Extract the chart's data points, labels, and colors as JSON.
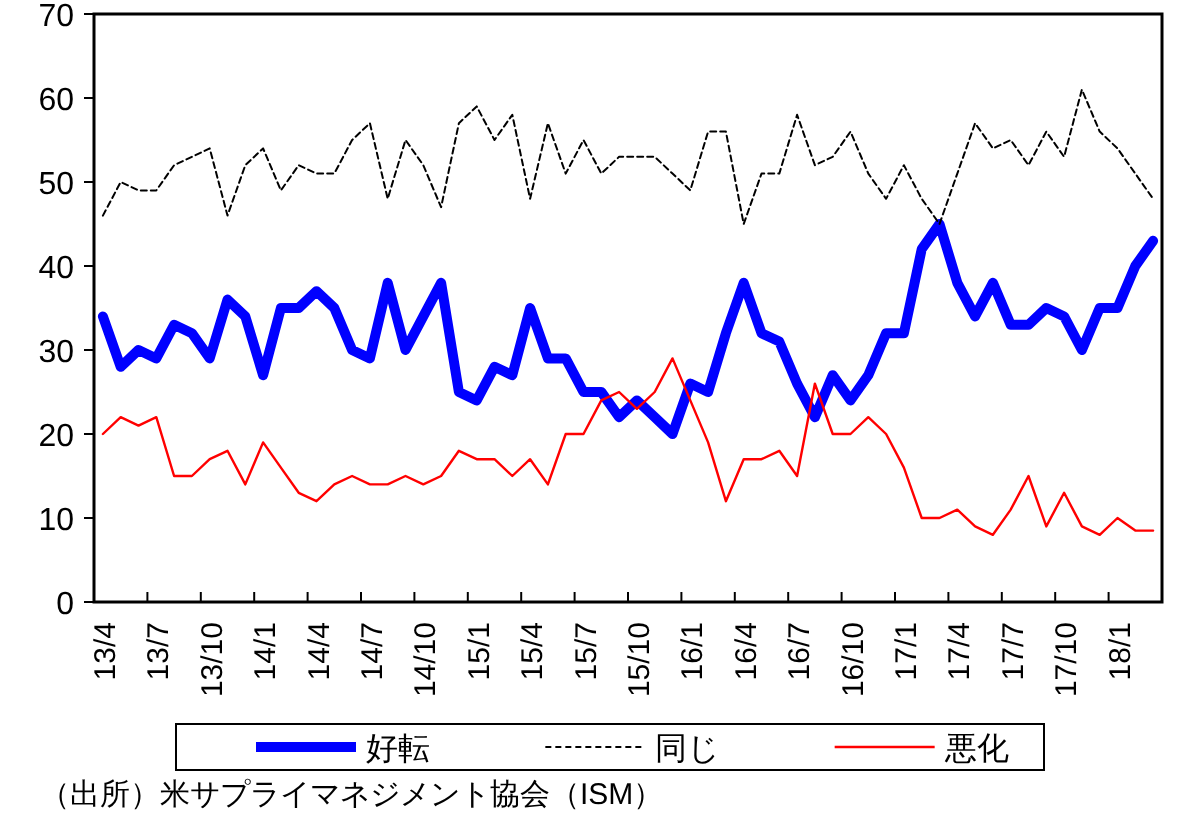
{
  "chart_data": {
    "type": "line",
    "categories": [
      "13/4",
      null,
      null,
      "13/7",
      null,
      null,
      "13/10",
      null,
      null,
      "14/1",
      null,
      null,
      "14/4",
      null,
      null,
      "14/7",
      null,
      null,
      "14/10",
      null,
      null,
      "15/1",
      null,
      null,
      "15/4",
      null,
      null,
      "15/7",
      null,
      null,
      "15/10",
      null,
      null,
      "16/1",
      null,
      null,
      "16/4",
      null,
      null,
      "16/7",
      null,
      null,
      "16/10",
      null,
      null,
      "17/1",
      null,
      null,
      "17/4",
      null,
      null,
      "17/7",
      null,
      null,
      "17/10",
      null,
      null,
      "18/1",
      null,
      null
    ],
    "series": [
      {
        "name": "好転",
        "color": "#0000ff",
        "line_style": "solid",
        "values": [
          34,
          28,
          30,
          29,
          33,
          32,
          29,
          36,
          34,
          27,
          35,
          35,
          37,
          35,
          30,
          29,
          38,
          30,
          34,
          38,
          25,
          24,
          28,
          27,
          35,
          29,
          29,
          25,
          25,
          22,
          24,
          22,
          20,
          26,
          25,
          32,
          38,
          32,
          31,
          26,
          22,
          27,
          24,
          27,
          32,
          32,
          42,
          45,
          38,
          34,
          38,
          33,
          33,
          35,
          34,
          30,
          35,
          35,
          40,
          43
        ]
      },
      {
        "name": "同じ",
        "color": "#000000",
        "line_style": "dashed",
        "values": [
          46,
          50,
          49,
          49,
          52,
          53,
          54,
          46,
          52,
          54,
          49,
          52,
          51,
          51,
          55,
          57,
          48,
          55,
          52,
          47,
          57,
          59,
          55,
          58,
          48,
          57,
          51,
          55,
          51,
          53,
          53,
          53,
          51,
          49,
          56,
          56,
          45,
          51,
          51,
          58,
          52,
          53,
          56,
          51,
          48,
          52,
          48,
          45,
          51,
          57,
          54,
          55,
          52,
          56,
          53,
          61,
          56,
          54,
          51,
          48
        ]
      },
      {
        "name": "悪化",
        "color": "#ff0000",
        "line_style": "solid",
        "values": [
          20,
          22,
          21,
          22,
          15,
          15,
          17,
          18,
          14,
          19,
          16,
          13,
          12,
          14,
          15,
          14,
          14,
          15,
          14,
          15,
          18,
          17,
          17,
          15,
          17,
          14,
          20,
          20,
          24,
          25,
          23,
          25,
          29,
          24,
          19,
          12,
          17,
          17,
          18,
          15,
          26,
          20,
          20,
          22,
          20,
          16,
          10,
          10,
          11,
          9,
          8,
          11,
          15,
          9,
          13,
          9,
          8,
          10,
          8.5,
          8.5
        ]
      }
    ],
    "ylim": [
      0,
      70
    ],
    "yticks": [
      0,
      10,
      20,
      30,
      40,
      50,
      60,
      70
    ],
    "legend": "bottom",
    "annotations": [
      "（出所）米サプライマネジメント協会（ISM）"
    ]
  }
}
